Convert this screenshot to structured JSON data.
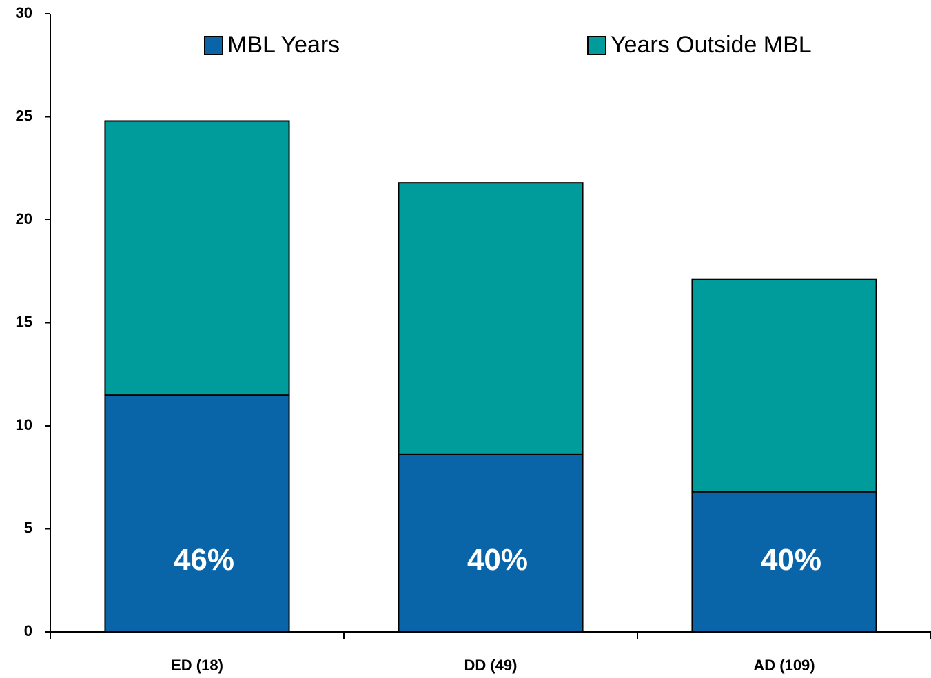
{
  "chart_data": {
    "type": "stacked_bar",
    "categories": [
      "ED (18)",
      "DD (49)",
      "AD (109)"
    ],
    "series": [
      {
        "name": "MBL Years",
        "color": "#0a64a8",
        "values": [
          11.5,
          8.6,
          6.8
        ]
      },
      {
        "name": "Years Outside MBL",
        "color": "#009b9b",
        "values": [
          13.3,
          13.2,
          10.3
        ]
      }
    ],
    "annotations": [
      "46%",
      "40%",
      "40%"
    ],
    "ylim": [
      0,
      30
    ],
    "yticks": [
      0,
      5,
      10,
      15,
      20,
      25,
      30
    ],
    "grid": false,
    "legend": "top"
  }
}
